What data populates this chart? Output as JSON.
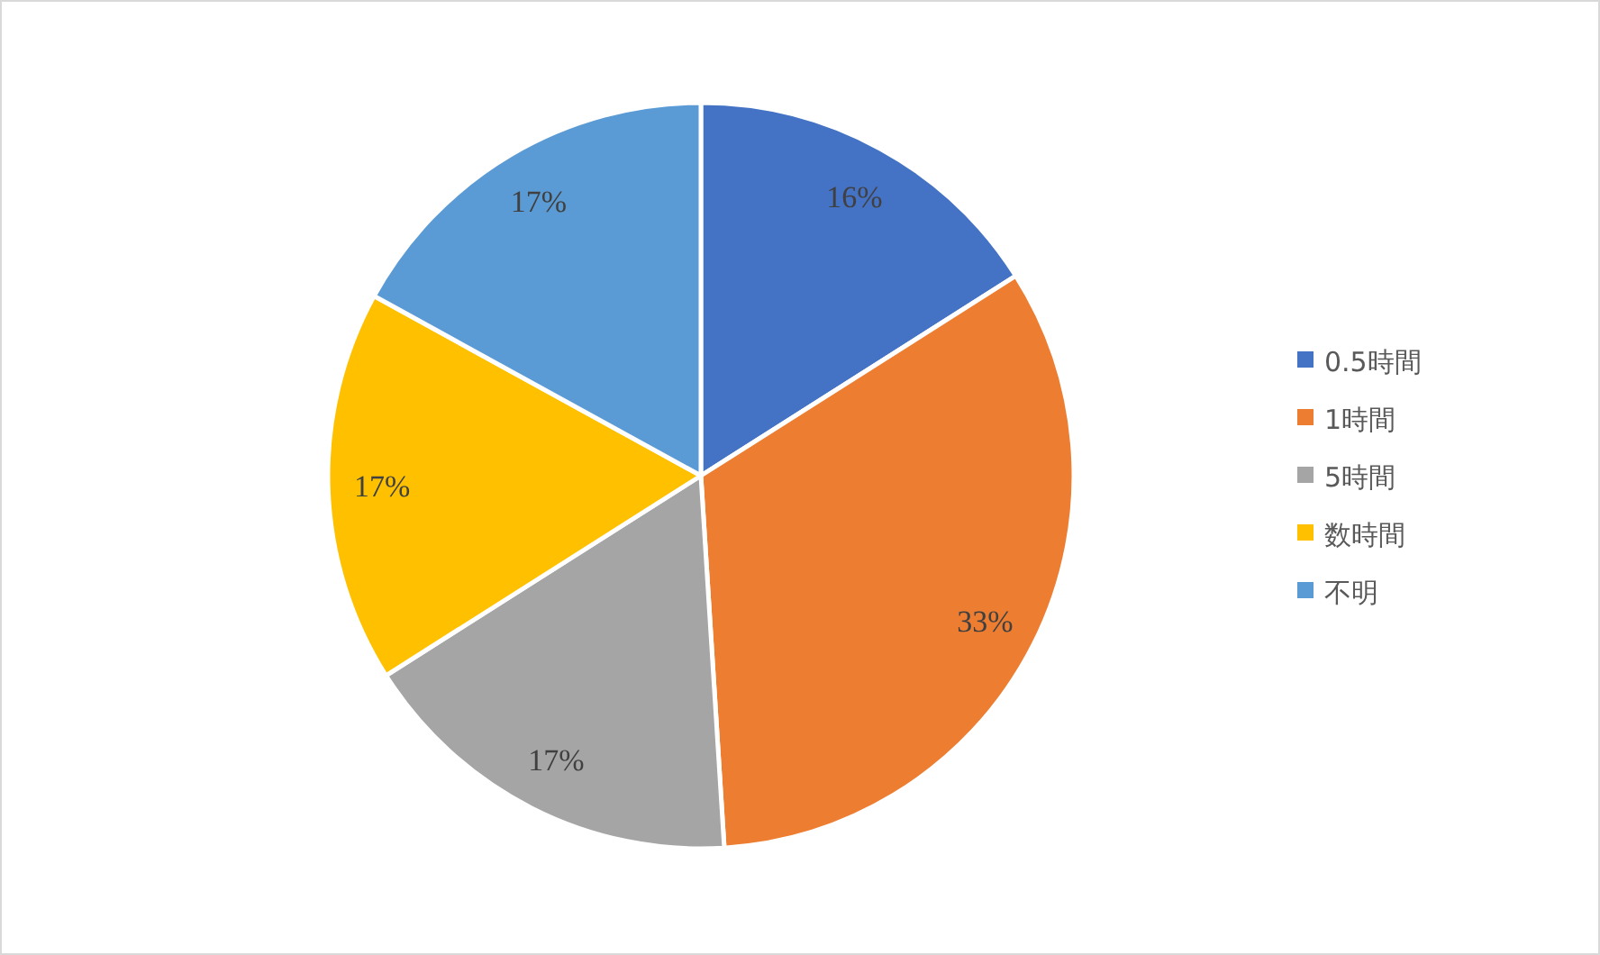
{
  "chart_data": {
    "type": "pie",
    "categories": [
      "0.5時間",
      "1時間",
      "5時間",
      "数時間",
      "不明"
    ],
    "values": [
      16,
      33,
      17,
      17,
      17
    ],
    "colors": [
      "#4472c4",
      "#ed7d31",
      "#a5a5a5",
      "#ffc000",
      "#5b9bd5"
    ],
    "value_labels": [
      "16%",
      "33%",
      "17%",
      "17%",
      "17%"
    ],
    "legend": "right"
  }
}
